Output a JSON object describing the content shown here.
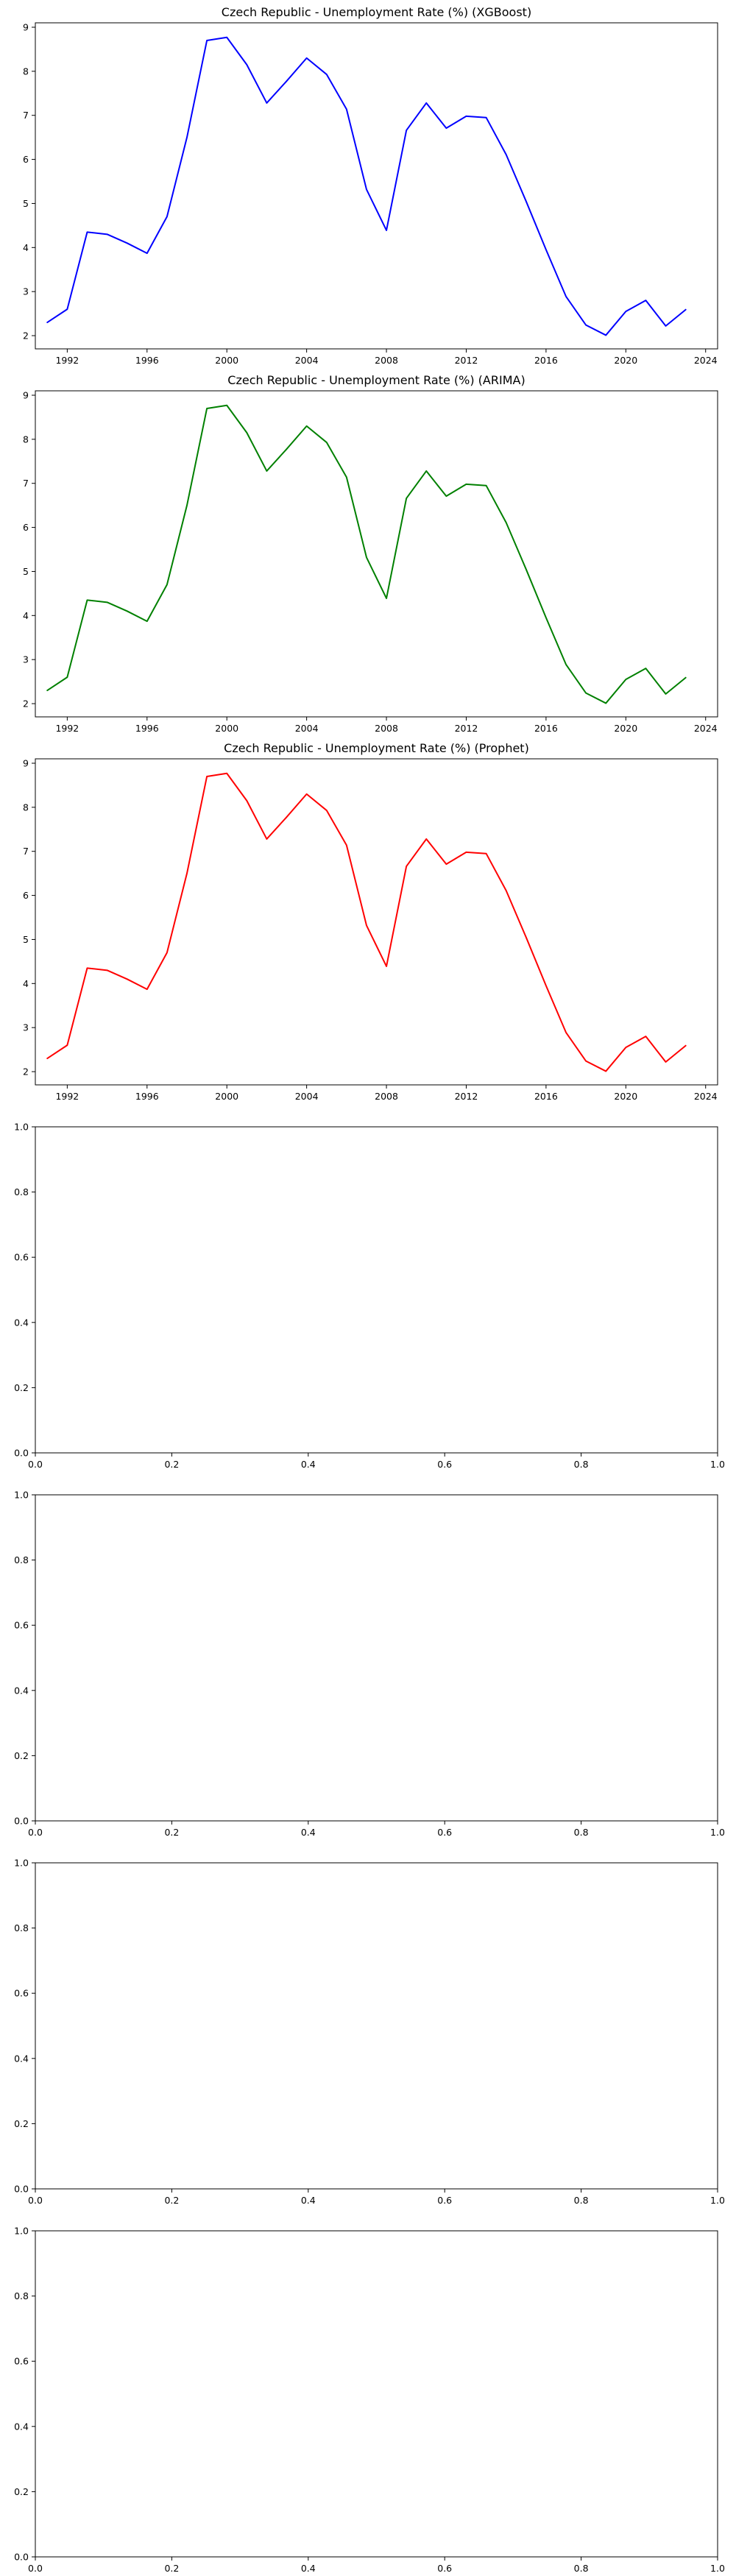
{
  "chart_data": [
    {
      "type": "line",
      "title": "Czech Republic - Unemployment Rate (%) (XGBoost)",
      "xlabel": "",
      "ylabel": "",
      "xlim": [
        1990.4,
        2024.6
      ],
      "ylim": [
        1.7,
        9.1
      ],
      "xticks": [
        1992,
        1996,
        2000,
        2004,
        2008,
        2012,
        2016,
        2020,
        2024
      ],
      "yticks": [
        2,
        3,
        4,
        5,
        6,
        7,
        8,
        9
      ],
      "grid": false,
      "series": [
        {
          "color": "#0000ff",
          "x": [
            1991,
            1992,
            1993,
            1994,
            1995,
            1996,
            1997,
            1998,
            1999,
            2000,
            2001,
            2002,
            2003,
            2004,
            2005,
            2006,
            2007,
            2008,
            2009,
            2010,
            2011,
            2012,
            2013,
            2014,
            2015,
            2016,
            2017,
            2018,
            2019,
            2020,
            2021,
            2022,
            2023
          ],
          "y": [
            2.3,
            2.6,
            4.35,
            4.3,
            4.1,
            3.87,
            4.7,
            6.5,
            8.7,
            8.77,
            8.15,
            7.28,
            7.78,
            8.3,
            7.93,
            7.14,
            5.32,
            4.39,
            6.66,
            7.28,
            6.71,
            6.98,
            6.95,
            6.11,
            5.05,
            3.95,
            2.89,
            2.24,
            2.01,
            2.55,
            2.8,
            2.22,
            2.59
          ]
        }
      ]
    },
    {
      "type": "line",
      "title": "Czech Republic - Unemployment Rate (%) (ARIMA)",
      "xlabel": "",
      "ylabel": "",
      "xlim": [
        1990.4,
        2024.6
      ],
      "ylim": [
        1.7,
        9.1
      ],
      "xticks": [
        1992,
        1996,
        2000,
        2004,
        2008,
        2012,
        2016,
        2020,
        2024
      ],
      "yticks": [
        2,
        3,
        4,
        5,
        6,
        7,
        8,
        9
      ],
      "grid": false,
      "series": [
        {
          "color": "#008000",
          "x": [
            1991,
            1992,
            1993,
            1994,
            1995,
            1996,
            1997,
            1998,
            1999,
            2000,
            2001,
            2002,
            2003,
            2004,
            2005,
            2006,
            2007,
            2008,
            2009,
            2010,
            2011,
            2012,
            2013,
            2014,
            2015,
            2016,
            2017,
            2018,
            2019,
            2020,
            2021,
            2022,
            2023
          ],
          "y": [
            2.3,
            2.6,
            4.35,
            4.3,
            4.1,
            3.87,
            4.7,
            6.5,
            8.7,
            8.77,
            8.15,
            7.28,
            7.78,
            8.3,
            7.93,
            7.14,
            5.32,
            4.39,
            6.66,
            7.28,
            6.71,
            6.98,
            6.95,
            6.11,
            5.05,
            3.95,
            2.89,
            2.24,
            2.01,
            2.55,
            2.8,
            2.22,
            2.59
          ]
        }
      ]
    },
    {
      "type": "line",
      "title": "Czech Republic - Unemployment Rate (%) (Prophet)",
      "xlabel": "",
      "ylabel": "",
      "xlim": [
        1990.4,
        2024.6
      ],
      "ylim": [
        1.7,
        9.1
      ],
      "xticks": [
        1992,
        1996,
        2000,
        2004,
        2008,
        2012,
        2016,
        2020,
        2024
      ],
      "yticks": [
        2,
        3,
        4,
        5,
        6,
        7,
        8,
        9
      ],
      "grid": false,
      "series": [
        {
          "color": "#ff0000",
          "x": [
            1991,
            1992,
            1993,
            1994,
            1995,
            1996,
            1997,
            1998,
            1999,
            2000,
            2001,
            2002,
            2003,
            2004,
            2005,
            2006,
            2007,
            2008,
            2009,
            2010,
            2011,
            2012,
            2013,
            2014,
            2015,
            2016,
            2017,
            2018,
            2019,
            2020,
            2021,
            2022,
            2023
          ],
          "y": [
            2.3,
            2.6,
            4.35,
            4.3,
            4.1,
            3.87,
            4.7,
            6.5,
            8.7,
            8.77,
            8.15,
            7.28,
            7.78,
            8.3,
            7.93,
            7.14,
            5.32,
            4.39,
            6.66,
            7.28,
            6.71,
            6.98,
            6.95,
            6.11,
            5.05,
            3.95,
            2.89,
            2.24,
            2.01,
            2.55,
            2.8,
            2.22,
            2.59
          ]
        }
      ]
    },
    {
      "type": "line",
      "title": "",
      "xlabel": "",
      "ylabel": "",
      "xlim": [
        0,
        1
      ],
      "ylim": [
        0,
        1
      ],
      "xticks": [
        0.0,
        0.2,
        0.4,
        0.6,
        0.8,
        1.0
      ],
      "yticks": [
        0.0,
        0.2,
        0.4,
        0.6,
        0.8,
        1.0
      ],
      "xticklabels": [
        "0.0",
        "0.2",
        "0.4",
        "0.6",
        "0.8",
        "1.0"
      ],
      "yticklabels": [
        "0.0",
        "0.2",
        "0.4",
        "0.6",
        "0.8",
        "1.0"
      ],
      "grid": false,
      "series": []
    },
    {
      "type": "line",
      "title": "",
      "xlabel": "",
      "ylabel": "",
      "xlim": [
        0,
        1
      ],
      "ylim": [
        0,
        1
      ],
      "xticks": [
        0.0,
        0.2,
        0.4,
        0.6,
        0.8,
        1.0
      ],
      "yticks": [
        0.0,
        0.2,
        0.4,
        0.6,
        0.8,
        1.0
      ],
      "xticklabels": [
        "0.0",
        "0.2",
        "0.4",
        "0.6",
        "0.8",
        "1.0"
      ],
      "yticklabels": [
        "0.0",
        "0.2",
        "0.4",
        "0.6",
        "0.8",
        "1.0"
      ],
      "grid": false,
      "series": []
    },
    {
      "type": "line",
      "title": "",
      "xlabel": "",
      "ylabel": "",
      "xlim": [
        0,
        1
      ],
      "ylim": [
        0,
        1
      ],
      "xticks": [
        0.0,
        0.2,
        0.4,
        0.6,
        0.8,
        1.0
      ],
      "yticks": [
        0.0,
        0.2,
        0.4,
        0.6,
        0.8,
        1.0
      ],
      "xticklabels": [
        "0.0",
        "0.2",
        "0.4",
        "0.6",
        "0.8",
        "1.0"
      ],
      "yticklabels": [
        "0.0",
        "0.2",
        "0.4",
        "0.6",
        "0.8",
        "1.0"
      ],
      "grid": false,
      "series": []
    },
    {
      "type": "line",
      "title": "",
      "xlabel": "",
      "ylabel": "",
      "xlim": [
        0,
        1
      ],
      "ylim": [
        0,
        1
      ],
      "xticks": [
        0.0,
        0.2,
        0.4,
        0.6,
        0.8,
        1.0
      ],
      "yticks": [
        0.0,
        0.2,
        0.4,
        0.6,
        0.8,
        1.0
      ],
      "xticklabels": [
        "0.0",
        "0.2",
        "0.4",
        "0.6",
        "0.8",
        "1.0"
      ],
      "yticklabels": [
        "0.0",
        "0.2",
        "0.4",
        "0.6",
        "0.8",
        "1.0"
      ],
      "grid": false,
      "series": []
    }
  ]
}
